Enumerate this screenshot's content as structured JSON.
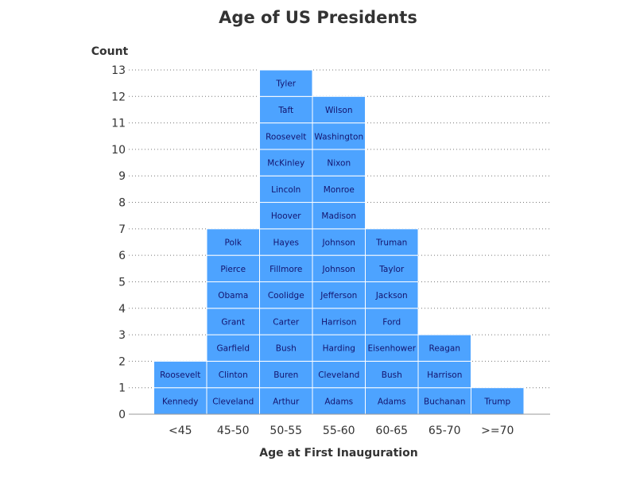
{
  "chart_data": {
    "type": "bar",
    "title": "Age of US Presidents",
    "xlabel": "Age at First Inauguration",
    "ylabel": "Count",
    "ylim": [
      0,
      13
    ],
    "yticks": [
      "0",
      "1",
      "2",
      "3",
      "4",
      "5",
      "6",
      "7",
      "8",
      "9",
      "10",
      "11",
      "12",
      "13"
    ],
    "grid": true,
    "bar_color": "#4da3ff",
    "label_color": "#14146e",
    "categories": [
      "<45",
      "45-50",
      "50-55",
      "55-60",
      "60-65",
      "65-70",
      ">=70"
    ],
    "values": [
      2,
      7,
      13,
      12,
      7,
      3,
      1
    ],
    "stacks": [
      [
        "Kennedy",
        "Roosevelt"
      ],
      [
        "Cleveland",
        "Clinton",
        "Garfield",
        "Grant",
        "Obama",
        "Pierce",
        "Polk"
      ],
      [
        "Arthur",
        "Buren",
        "Bush",
        "Carter",
        "Coolidge",
        "Fillmore",
        "Hayes",
        "Hoover",
        "Lincoln",
        "McKinley",
        "Roosevelt",
        "Taft",
        "Tyler"
      ],
      [
        "Adams",
        "Cleveland",
        "Harding",
        "Harrison",
        "Jefferson",
        "Johnson",
        "Johnson",
        "Madison",
        "Monroe",
        "Nixon",
        "Washington",
        "Wilson"
      ],
      [
        "Adams",
        "Bush",
        "Eisenhower",
        "Ford",
        "Jackson",
        "Taylor",
        "Truman"
      ],
      [
        "Buchanan",
        "Harrison",
        "Reagan"
      ],
      [
        "Trump"
      ]
    ]
  }
}
